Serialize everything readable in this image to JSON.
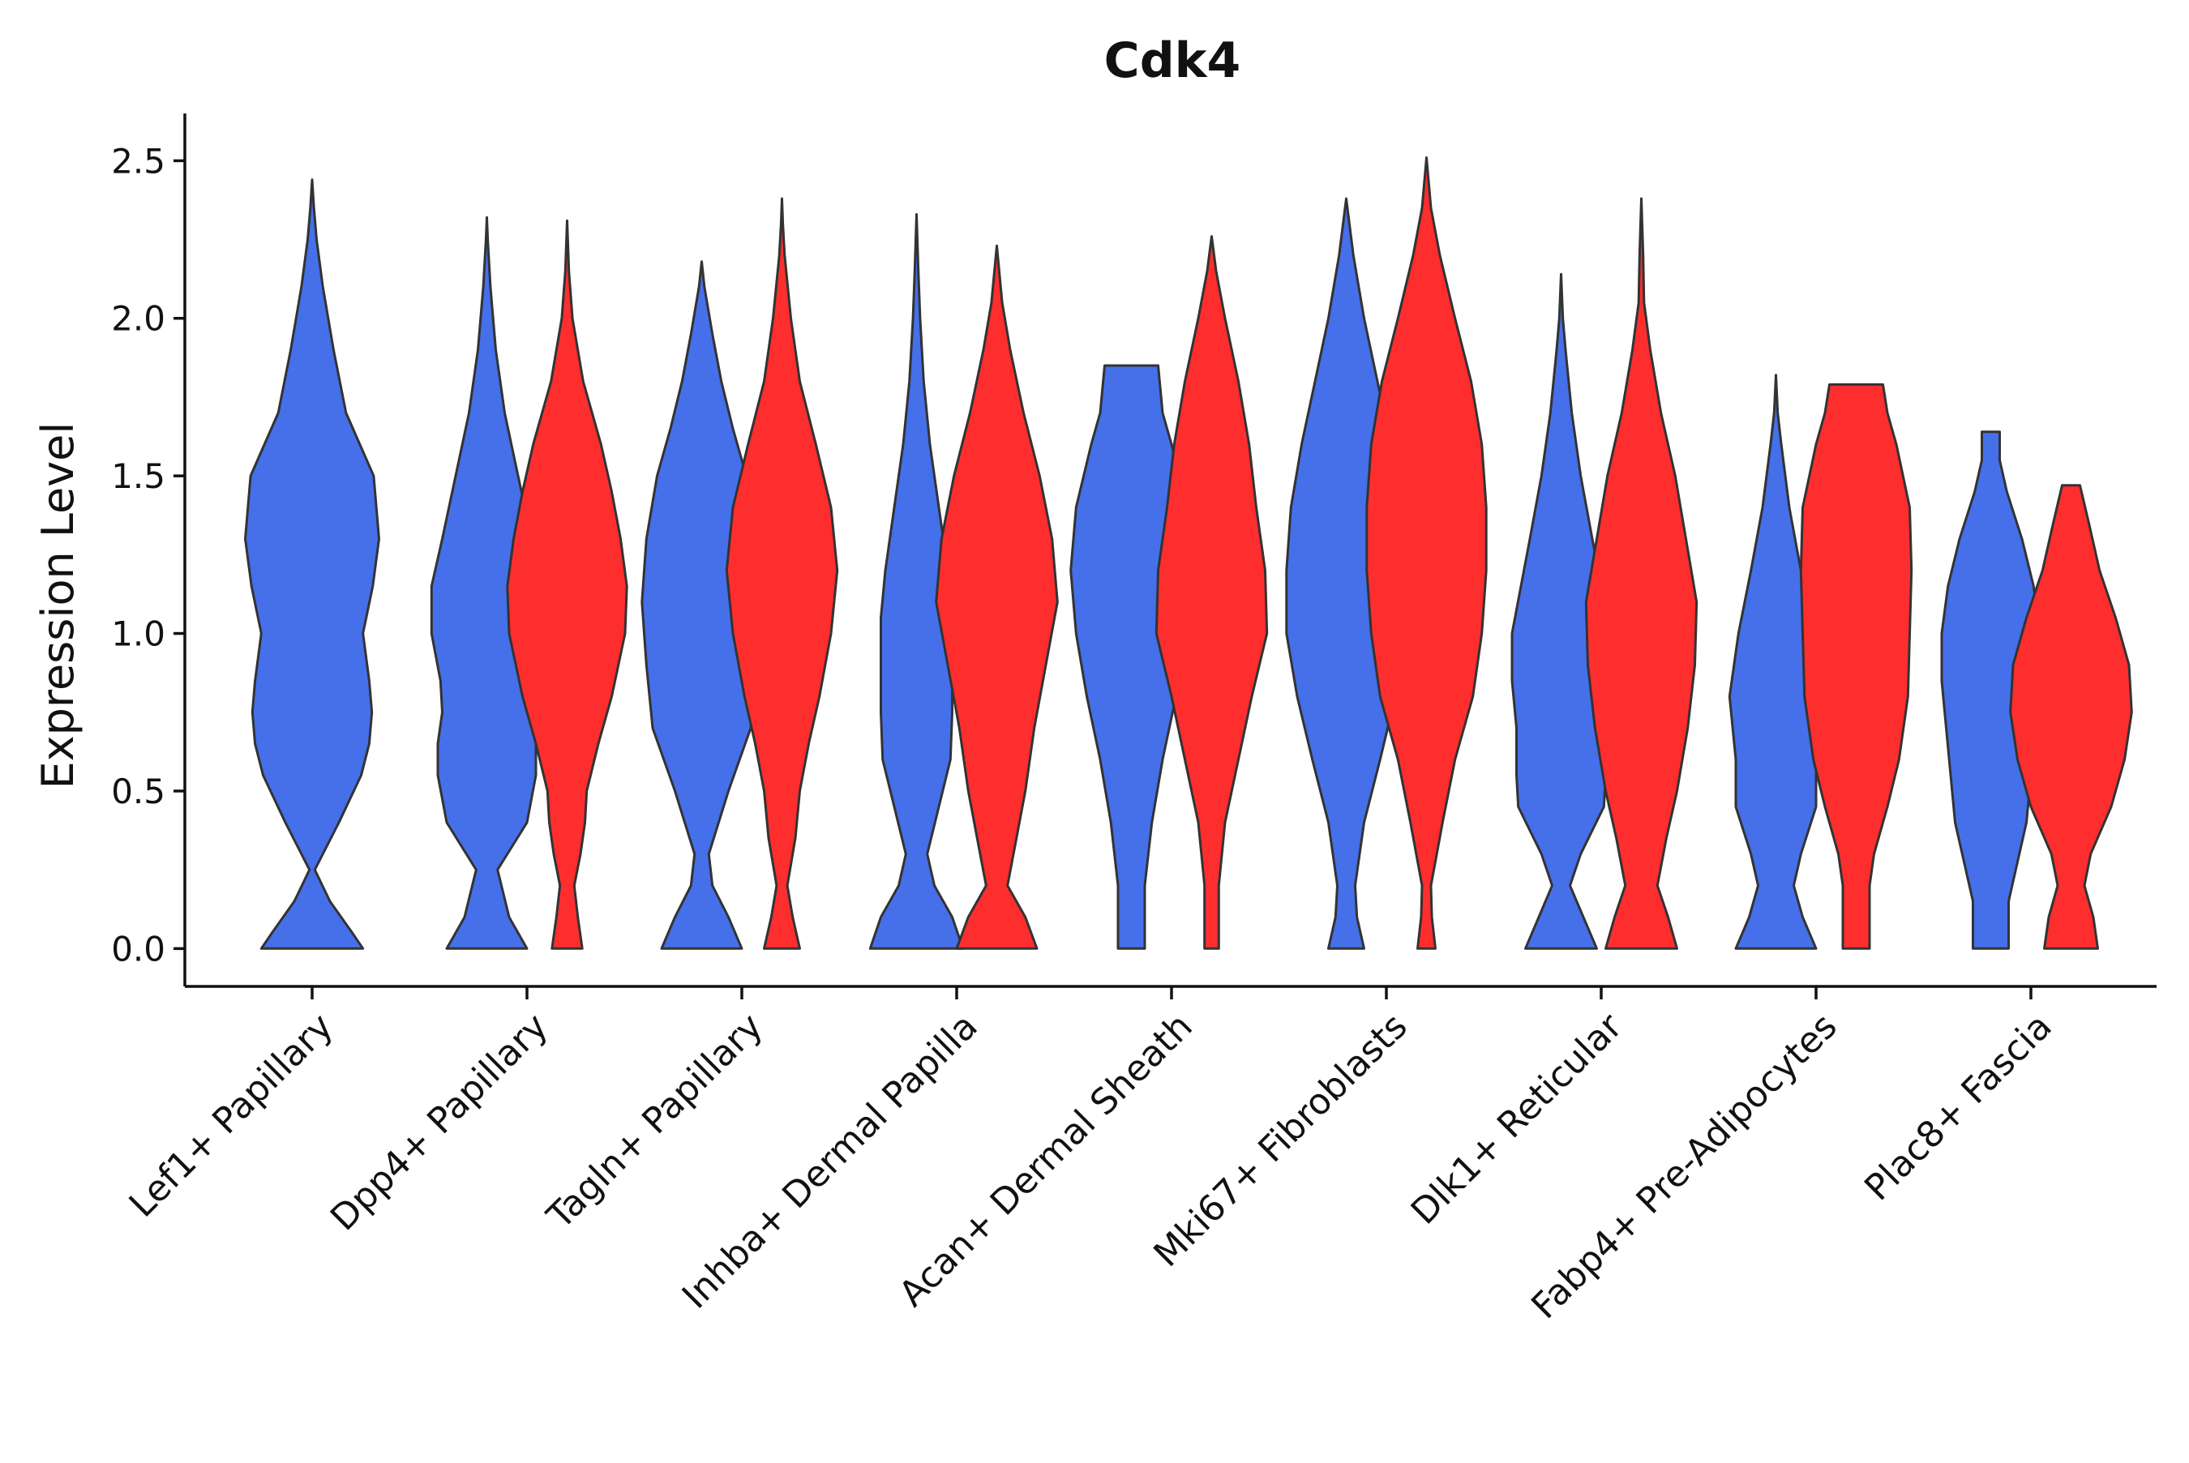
{
  "chart_data": {
    "type": "violin",
    "title": "Cdk4",
    "xlabel": "",
    "ylabel": "Expression Level",
    "ylim": [
      -0.12,
      2.65
    ],
    "yticks": [
      0.0,
      0.5,
      1.0,
      1.5,
      2.0,
      2.5
    ],
    "ytick_labels": [
      "0.0",
      "0.5",
      "1.0",
      "1.5",
      "2.0",
      "2.5"
    ],
    "grid": false,
    "legend": "none",
    "colors": {
      "group_a": "#4570EA",
      "group_b": "#FF2E2E",
      "outline": "#333333"
    },
    "categories": [
      "Lef1+ Papillary",
      "Dpp4+ Papillary",
      "Tagln+ Papillary",
      "Inhba+ Dermal Papilla",
      "Acan+ Dermal Sheath",
      "Mki67+ Fibroblasts",
      "Dlk1+ Reticular",
      "Fabp4+ Pre-Adipocytes",
      "Plac8+ Fascia"
    ],
    "violins": [
      {
        "category": "Lef1+ Papillary",
        "group": "group_a",
        "position": 0.0,
        "width": 1.45,
        "y": [
          0,
          0.05,
          0.15,
          0.25,
          0.4,
          0.55,
          0.65,
          0.75,
          0.85,
          1.0,
          1.15,
          1.3,
          1.5,
          1.7,
          1.9,
          2.1,
          2.25,
          2.35,
          2.44
        ],
        "density": [
          0.57,
          0.45,
          0.2,
          0.03,
          0.3,
          0.55,
          0.64,
          0.67,
          0.64,
          0.57,
          0.68,
          0.75,
          0.69,
          0.38,
          0.24,
          0.12,
          0.05,
          0.02,
          0
        ]
      },
      {
        "category": "Dpp4+ Papillary",
        "group": "group_a",
        "position": -0.45,
        "width": 0.55,
        "y": [
          0,
          0.1,
          0.25,
          0.4,
          0.55,
          0.65,
          0.75,
          0.85,
          1.0,
          1.15,
          1.3,
          1.5,
          1.7,
          1.9,
          2.1,
          2.25,
          2.32
        ],
        "density": [
          0.45,
          0.25,
          0.12,
          0.45,
          0.55,
          0.55,
          0.5,
          0.52,
          0.62,
          0.62,
          0.5,
          0.35,
          0.2,
          0.1,
          0.04,
          0.01,
          0
        ]
      },
      {
        "category": "Dpp4+ Papillary",
        "group": "group_b",
        "position": 0.45,
        "width": 0.55,
        "y": [
          0,
          0.1,
          0.2,
          0.3,
          0.4,
          0.5,
          0.65,
          0.8,
          1.0,
          1.15,
          1.3,
          1.45,
          1.6,
          1.8,
          2.0,
          2.15,
          2.31
        ],
        "density": [
          0.17,
          0.12,
          0.08,
          0.15,
          0.2,
          0.22,
          0.35,
          0.5,
          0.65,
          0.67,
          0.6,
          0.5,
          0.38,
          0.18,
          0.06,
          0.02,
          0
        ]
      },
      {
        "category": "Tagln+ Papillary",
        "group": "group_a",
        "position": -0.45,
        "width": 0.55,
        "y": [
          0,
          0.1,
          0.2,
          0.3,
          0.5,
          0.7,
          0.9,
          1.1,
          1.3,
          1.5,
          1.65,
          1.8,
          1.95,
          2.1,
          2.18
        ],
        "density": [
          0.45,
          0.3,
          0.12,
          0.08,
          0.3,
          0.55,
          0.62,
          0.67,
          0.62,
          0.5,
          0.35,
          0.22,
          0.12,
          0.03,
          0
        ]
      },
      {
        "category": "Tagln+ Papillary",
        "group": "group_b",
        "position": 0.45,
        "width": 0.55,
        "y": [
          0,
          0.1,
          0.2,
          0.35,
          0.5,
          0.65,
          0.8,
          1.0,
          1.2,
          1.4,
          1.6,
          1.8,
          2.0,
          2.2,
          2.3,
          2.38
        ],
        "density": [
          0.2,
          0.12,
          0.06,
          0.15,
          0.2,
          0.3,
          0.42,
          0.55,
          0.62,
          0.55,
          0.38,
          0.2,
          0.1,
          0.03,
          0.01,
          0
        ]
      },
      {
        "category": "Inhba+ Dermal Papilla",
        "group": "group_a",
        "position": -0.45,
        "width": 0.55,
        "y": [
          0,
          0.1,
          0.2,
          0.3,
          0.45,
          0.6,
          0.75,
          0.9,
          1.05,
          1.2,
          1.4,
          1.6,
          1.8,
          2.0,
          2.15,
          2.33
        ],
        "density": [
          0.52,
          0.4,
          0.2,
          0.12,
          0.25,
          0.38,
          0.4,
          0.4,
          0.4,
          0.35,
          0.25,
          0.15,
          0.08,
          0.04,
          0.02,
          0
        ]
      },
      {
        "category": "Inhba+ Dermal Papilla",
        "group": "group_b",
        "position": 0.45,
        "width": 0.55,
        "y": [
          0,
          0.1,
          0.2,
          0.35,
          0.5,
          0.7,
          0.9,
          1.1,
          1.3,
          1.5,
          1.7,
          1.9,
          2.05,
          2.23
        ],
        "density": [
          0.45,
          0.32,
          0.12,
          0.22,
          0.32,
          0.42,
          0.55,
          0.68,
          0.62,
          0.48,
          0.3,
          0.15,
          0.06,
          0
        ]
      },
      {
        "category": "Acan+ Dermal Sheath",
        "group": "group_a",
        "position": -0.45,
        "width": 0.55,
        "y": [
          0,
          0.2,
          0.4,
          0.6,
          0.8,
          1.0,
          1.2,
          1.4,
          1.6,
          1.7,
          1.85
        ],
        "density": [
          0.15,
          0.15,
          0.23,
          0.35,
          0.5,
          0.62,
          0.68,
          0.62,
          0.45,
          0.35,
          0.3
        ]
      },
      {
        "category": "Acan+ Dermal Sheath",
        "group": "group_b",
        "position": 0.45,
        "width": 0.55,
        "y": [
          0,
          0.2,
          0.4,
          0.6,
          0.8,
          1.0,
          1.2,
          1.4,
          1.6,
          1.8,
          2.0,
          2.15,
          2.26
        ],
        "density": [
          0.08,
          0.08,
          0.15,
          0.3,
          0.45,
          0.62,
          0.6,
          0.5,
          0.42,
          0.3,
          0.15,
          0.05,
          0
        ]
      },
      {
        "category": "Mki67+ Fibroblasts",
        "group": "group_a",
        "position": -0.45,
        "width": 0.55,
        "y": [
          0,
          0.1,
          0.2,
          0.4,
          0.6,
          0.8,
          1.0,
          1.2,
          1.4,
          1.6,
          1.8,
          2.0,
          2.2,
          2.38
        ],
        "density": [
          0.2,
          0.12,
          0.1,
          0.2,
          0.38,
          0.55,
          0.67,
          0.67,
          0.62,
          0.5,
          0.35,
          0.2,
          0.08,
          0
        ]
      },
      {
        "category": "Mki67+ Fibroblasts",
        "group": "group_b",
        "position": 0.45,
        "width": 0.55,
        "y": [
          0,
          0.1,
          0.2,
          0.4,
          0.6,
          0.8,
          1.0,
          1.2,
          1.4,
          1.6,
          1.8,
          2.0,
          2.2,
          2.35,
          2.51
        ],
        "density": [
          0.1,
          0.06,
          0.05,
          0.18,
          0.32,
          0.52,
          0.62,
          0.67,
          0.67,
          0.62,
          0.5,
          0.32,
          0.15,
          0.05,
          0
        ]
      },
      {
        "category": "Dlk1+ Reticular",
        "group": "group_a",
        "position": -0.45,
        "width": 0.55,
        "y": [
          0,
          0.1,
          0.2,
          0.3,
          0.45,
          0.55,
          0.7,
          0.85,
          1.0,
          1.15,
          1.3,
          1.5,
          1.7,
          1.9,
          2.0,
          2.14
        ],
        "density": [
          0.4,
          0.25,
          0.1,
          0.22,
          0.48,
          0.5,
          0.5,
          0.55,
          0.55,
          0.45,
          0.35,
          0.22,
          0.12,
          0.05,
          0.02,
          0
        ]
      },
      {
        "category": "Dlk1+ Reticular",
        "group": "group_b",
        "position": 0.45,
        "width": 0.55,
        "y": [
          0,
          0.1,
          0.2,
          0.35,
          0.5,
          0.7,
          0.9,
          1.1,
          1.3,
          1.5,
          1.7,
          1.9,
          2.05,
          2.2,
          2.38
        ],
        "density": [
          0.4,
          0.3,
          0.18,
          0.28,
          0.4,
          0.52,
          0.6,
          0.62,
          0.5,
          0.38,
          0.22,
          0.1,
          0.03,
          0.02,
          0
        ]
      },
      {
        "category": "Fabp4+ Pre-Adipocytes",
        "group": "group_a",
        "position": -0.45,
        "width": 0.55,
        "y": [
          0,
          0.1,
          0.2,
          0.3,
          0.45,
          0.6,
          0.8,
          1.0,
          1.2,
          1.4,
          1.6,
          1.7,
          1.82
        ],
        "density": [
          0.45,
          0.3,
          0.2,
          0.28,
          0.45,
          0.45,
          0.52,
          0.42,
          0.28,
          0.15,
          0.06,
          0.02,
          0
        ]
      },
      {
        "category": "Fabp4+ Pre-Adipocytes",
        "group": "group_b",
        "position": 0.45,
        "width": 0.55,
        "y": [
          0,
          0.2,
          0.3,
          0.45,
          0.6,
          0.8,
          1.0,
          1.2,
          1.4,
          1.6,
          1.7,
          1.79
        ],
        "density": [
          0.15,
          0.15,
          0.2,
          0.35,
          0.48,
          0.58,
          0.6,
          0.62,
          0.6,
          0.45,
          0.35,
          0.3
        ]
      },
      {
        "category": "Plac8+ Fascia",
        "group": "group_a",
        "position": -0.45,
        "width": 0.55,
        "y": [
          0,
          0.15,
          0.25,
          0.4,
          0.55,
          0.7,
          0.85,
          1.0,
          1.15,
          1.3,
          1.45,
          1.55,
          1.64
        ],
        "density": [
          0.2,
          0.2,
          0.28,
          0.4,
          0.45,
          0.5,
          0.55,
          0.55,
          0.48,
          0.35,
          0.18,
          0.1,
          0.1
        ]
      },
      {
        "category": "Plac8+ Fascia",
        "group": "group_b",
        "position": 0.45,
        "width": 0.55,
        "y": [
          0,
          0.1,
          0.2,
          0.3,
          0.45,
          0.6,
          0.75,
          0.9,
          1.05,
          1.2,
          1.35,
          1.47
        ],
        "density": [
          0.3,
          0.25,
          0.15,
          0.22,
          0.45,
          0.6,
          0.68,
          0.65,
          0.5,
          0.32,
          0.2,
          0.1
        ]
      }
    ]
  }
}
